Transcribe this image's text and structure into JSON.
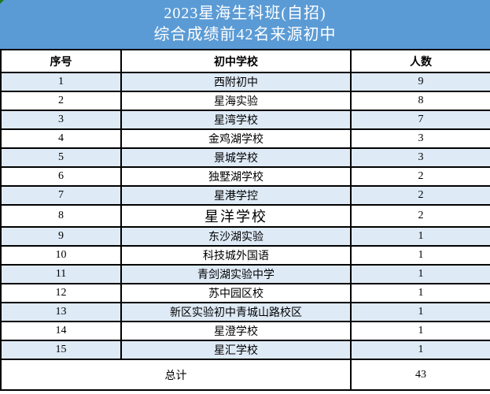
{
  "title": {
    "line1": "2023星海生科班(自招)",
    "line2": "综合成绩前42名来源初中"
  },
  "columns": [
    "序号",
    "初中学校",
    "人数"
  ],
  "rows": [
    {
      "no": "1",
      "school": "西附初中",
      "count": "9"
    },
    {
      "no": "2",
      "school": "星海实验",
      "count": "8"
    },
    {
      "no": "3",
      "school": "星湾学校",
      "count": "7"
    },
    {
      "no": "4",
      "school": "金鸡湖学校",
      "count": "3"
    },
    {
      "no": "5",
      "school": "景城学校",
      "count": "3"
    },
    {
      "no": "6",
      "school": "独墅湖学校",
      "count": "2"
    },
    {
      "no": "7",
      "school": "星港学控",
      "count": "2"
    },
    {
      "no": "8",
      "school": "星洋学校",
      "count": "2",
      "emphasis": true
    },
    {
      "no": "9",
      "school": "东沙湖实验",
      "count": "1"
    },
    {
      "no": "10",
      "school": "科技城外国语",
      "count": "1"
    },
    {
      "no": "11",
      "school": "青剑湖实验中学",
      "count": "1"
    },
    {
      "no": "12",
      "school": "苏中园区校",
      "count": "1"
    },
    {
      "no": "13",
      "school": "新区实验初中青城山路校区",
      "count": "1"
    },
    {
      "no": "14",
      "school": "星澄学校",
      "count": "1"
    },
    {
      "no": "15",
      "school": "星汇学校",
      "count": "1"
    }
  ],
  "total": {
    "label": "总计",
    "count": "43"
  },
  "colors": {
    "title_bg": "#5b9bd5",
    "title_text": "#ffffff",
    "row_alt_bg": "#deeaf6",
    "row_bg": "#ffffff",
    "border": "#000000",
    "corner_artifact": "#1f7a1f"
  },
  "chart_data": {
    "type": "table",
    "title": "2023星海生科班(自招) 综合成绩前42名来源初中",
    "columns": [
      "序号",
      "初中学校",
      "人数"
    ],
    "rows": [
      [
        1,
        "西附初中",
        9
      ],
      [
        2,
        "星海实验",
        8
      ],
      [
        3,
        "星湾学校",
        7
      ],
      [
        4,
        "金鸡湖学校",
        3
      ],
      [
        5,
        "景城学校",
        3
      ],
      [
        6,
        "独墅湖学校",
        2
      ],
      [
        7,
        "星港学控",
        2
      ],
      [
        8,
        "星洋学校",
        2
      ],
      [
        9,
        "东沙湖实验",
        1
      ],
      [
        10,
        "科技城外国语",
        1
      ],
      [
        11,
        "青剑湖实验中学",
        1
      ],
      [
        12,
        "苏中园区校",
        1
      ],
      [
        13,
        "新区实验初中青城山路校区",
        1
      ],
      [
        14,
        "星澄学校",
        1
      ],
      [
        15,
        "星汇学校",
        1
      ]
    ],
    "total_row": [
      "总计",
      43
    ]
  }
}
